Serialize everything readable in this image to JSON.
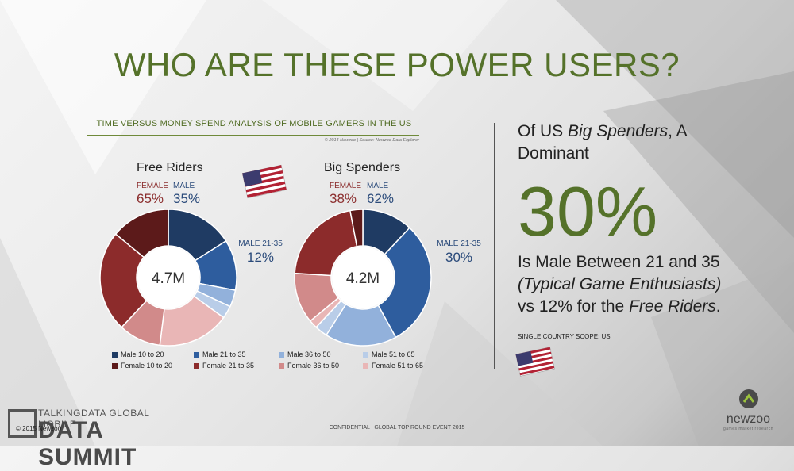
{
  "slide": {
    "title": "WHO ARE THESE POWER USERS?",
    "confidential": "CONFIDENTIAL | GLOBAL TOP ROUND EVENT 2015",
    "copyright": "© 2015 Newzoo",
    "event_top": "TALKINGDATA GLOBAL MOBILE",
    "event_main": "DATA SUMMIT",
    "brand_name": "newzoo",
    "brand_tagline": "games market research"
  },
  "chart_header": {
    "title": "TIME VERSUS MONEY SPEND ANALYSIS OF MOBILE GAMERS IN THE US",
    "source": "© 2014 Newzoo | Source: Newzoo Data Explorer"
  },
  "right_panel": {
    "intro_prefix": "Of US ",
    "intro_emph": "Big Spenders",
    "intro_suffix": ", A Dominant",
    "big_pct": "30%",
    "line1": "Is Male Between 21 and 35",
    "line2": "(Typical Game Enthusiasts)",
    "line3_prefix": "vs 12% for the ",
    "line3_emph": "Free Riders",
    "line3_suffix": ".",
    "scope": "SINGLE COUNTRY SCOPE: US"
  },
  "chart_data": [
    {
      "type": "pie",
      "variant": "donut",
      "title": "Free Riders",
      "center_label": "4.7M",
      "female_label": "FEMALE",
      "female_pct": "65%",
      "male_label": "MALE",
      "male_pct": "35%",
      "callout_label": "MALE 21-35",
      "callout_value": "12%",
      "categories": [
        "Male 10 to 20",
        "Male 21 to 35",
        "Male 36 to 50",
        "Male 51 to 65",
        "Female 51 to 65",
        "Female 36 to 50",
        "Female 21 to 35",
        "Female 10 to 20"
      ],
      "values": [
        16,
        12,
        4,
        3,
        17,
        10,
        24,
        14
      ]
    },
    {
      "type": "pie",
      "variant": "donut",
      "title": "Big Spenders",
      "center_label": "4.2M",
      "female_label": "FEMALE",
      "female_pct": "38%",
      "male_label": "MALE",
      "male_pct": "62%",
      "callout_label": "MALE 21-35",
      "callout_value": "30%",
      "categories": [
        "Male 10 to 20",
        "Male 21 to 35",
        "Male 36 to 50",
        "Male 51 to 65",
        "Female 51 to 65",
        "Female 36 to 50",
        "Female 21 to 35",
        "Female 10 to 20"
      ],
      "values": [
        12,
        30,
        17,
        3,
        2,
        12,
        21,
        3
      ]
    }
  ],
  "legend": [
    {
      "label": "Male 10 to 20",
      "color": "#1f3b63"
    },
    {
      "label": "Male 21 to 35",
      "color": "#2e5d9e"
    },
    {
      "label": "Male 36 to 50",
      "color": "#92b1db"
    },
    {
      "label": "Male 51 to 65",
      "color": "#b9cde8"
    },
    {
      "label": "Female 10 to 20",
      "color": "#5c1a1a"
    },
    {
      "label": "Female 21 to 35",
      "color": "#8c2b2b"
    },
    {
      "label": "Female 36 to 50",
      "color": "#d18a8a"
    },
    {
      "label": "Female 51 to 65",
      "color": "#e9b6b6"
    }
  ],
  "colors": {
    "accent_green": "#55722a",
    "male_blue": "#2a4a7a",
    "female_red": "#8b2d2d"
  },
  "icons": [
    "us-flag-icon",
    "us-flag-icon",
    "newzoo-logo-icon",
    "data-summit-logo-icon"
  ]
}
